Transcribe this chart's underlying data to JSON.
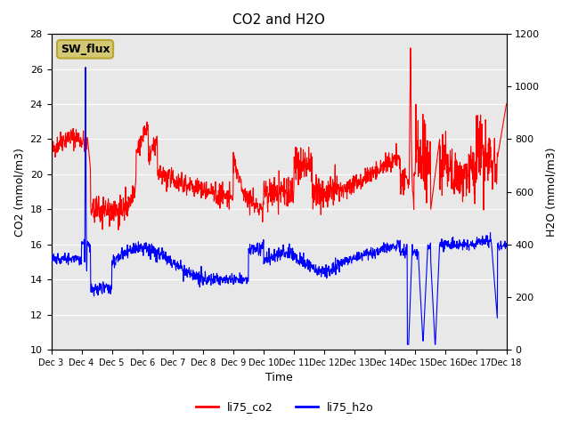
{
  "title": "CO2 and H2O",
  "xlabel": "Time",
  "ylabel_left": "CO2 (mmol/m3)",
  "ylabel_right": "H2O (mmol/m3)",
  "ylim_left": [
    10,
    28
  ],
  "ylim_right": [
    0,
    1200
  ],
  "yticks_left": [
    10,
    12,
    14,
    16,
    18,
    20,
    22,
    24,
    26,
    28
  ],
  "yticks_right": [
    0,
    200,
    400,
    600,
    800,
    1000,
    1200
  ],
  "color_co2": "#ff0000",
  "color_h2o": "#0000ff",
  "color_bg": "#e8e8e8",
  "legend_label_co2": "li75_co2",
  "legend_label_h2o": "li75_h2o",
  "sw_flux_label": "SW_flux",
  "xtick_labels": [
    "Dec 3",
    "Dec 4",
    "Dec 5",
    "Dec 6",
    "Dec 7",
    "Dec 8",
    "Dec 9",
    "Dec 10",
    "Dec 11",
    "Dec 12",
    "Dec 13",
    "Dec 14",
    "Dec 15",
    "Dec 16",
    "Dec 17",
    "Dec 18"
  ],
  "n_points": 1500
}
